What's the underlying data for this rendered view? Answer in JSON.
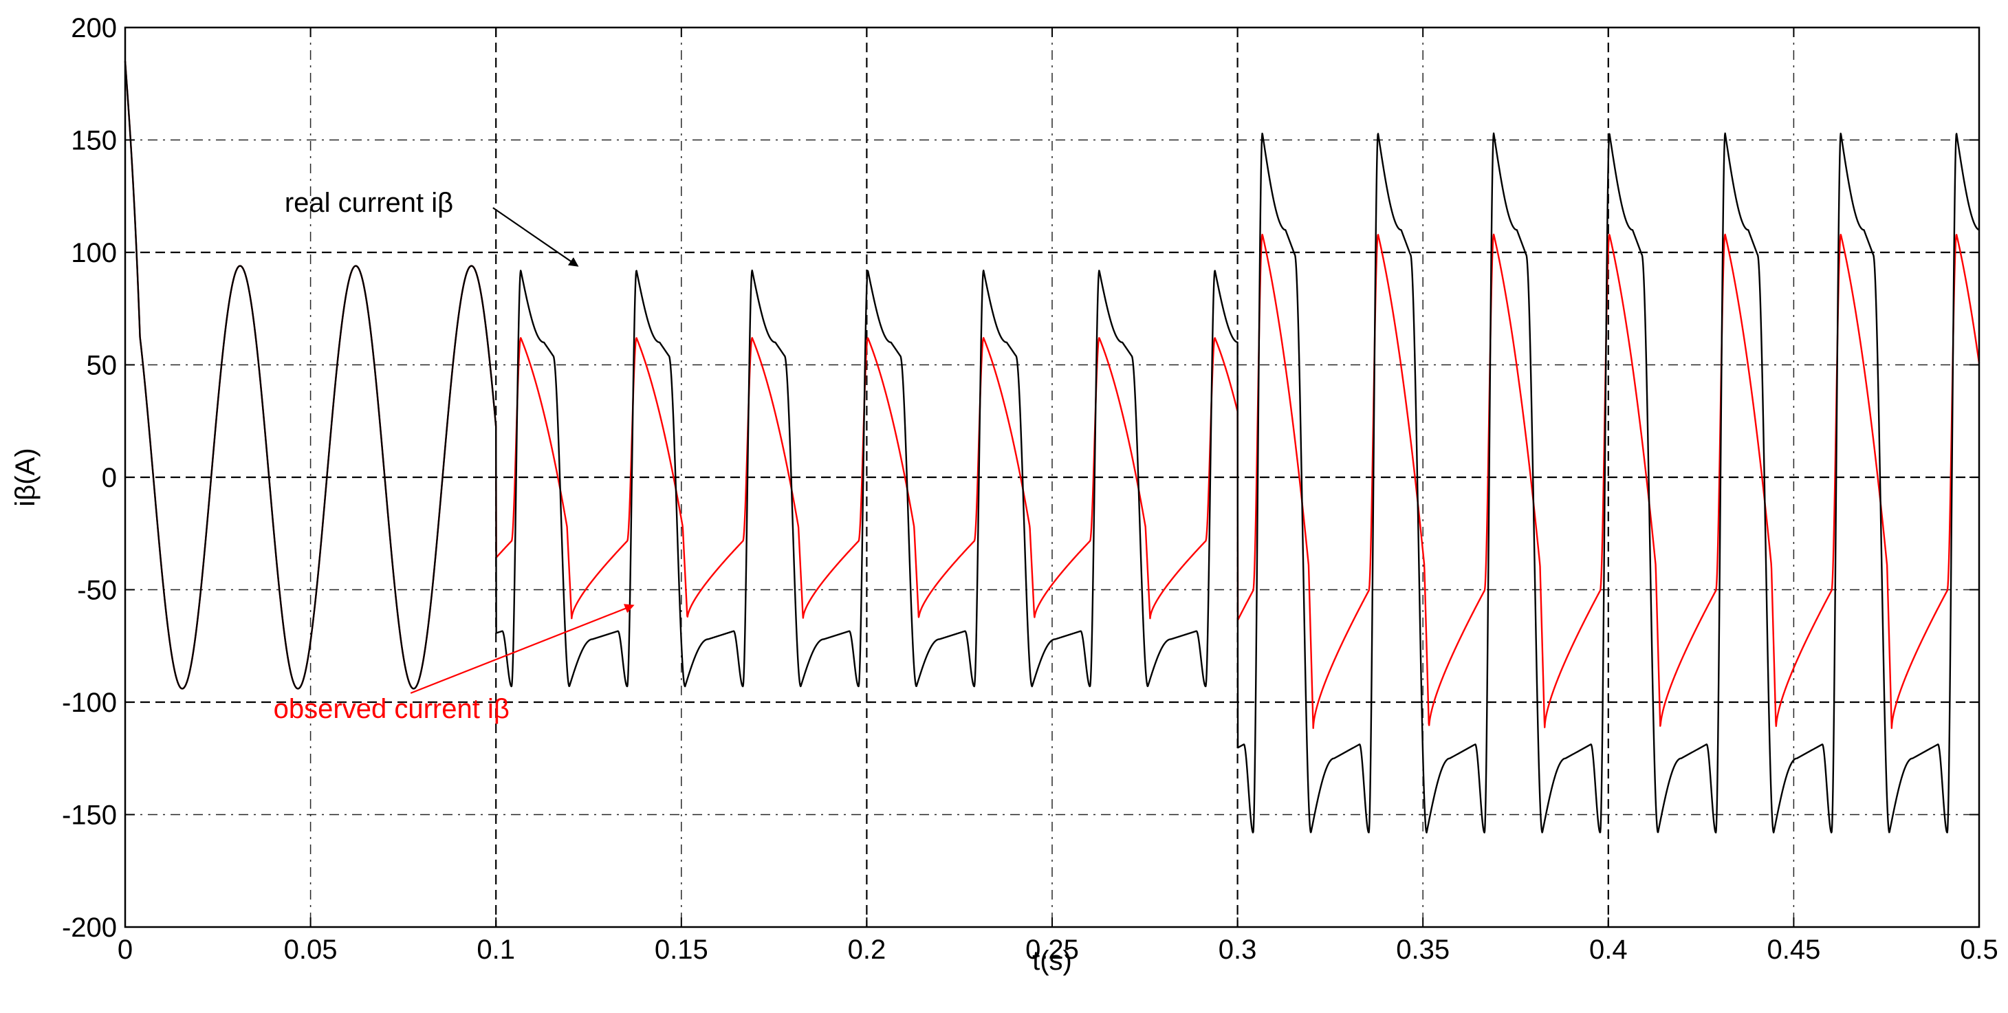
{
  "chart_data": {
    "type": "line",
    "title": "",
    "xlabel": "t(s)",
    "ylabel": "iβ(A)",
    "xlim": [
      0,
      0.5
    ],
    "ylim": [
      -200,
      200
    ],
    "grid": true,
    "x_ticks": [
      0,
      0.05,
      0.1,
      0.15,
      0.2,
      0.25,
      0.3,
      0.35,
      0.4,
      0.45,
      0.5
    ],
    "x_tick_labels": [
      "0",
      "0.05",
      "0.1",
      "0.15",
      "0.2",
      "0.25",
      "0.3",
      "0.35",
      "0.4",
      "0.45",
      "0.5"
    ],
    "y_ticks": [
      -200,
      -150,
      -100,
      -50,
      0,
      50,
      100,
      150,
      200
    ],
    "y_tick_labels": [
      "-200",
      "-150",
      "-100",
      "-50",
      "0",
      "50",
      "100",
      "150",
      "200"
    ],
    "period_s": 0.0312,
    "series": [
      {
        "name": "real current iβ",
        "color": "#000000",
        "segments": [
          {
            "t_start": 0.0,
            "t_end": 0.1,
            "shape": "sine",
            "amplitude": 94,
            "initial_peak": 185
          },
          {
            "t_start": 0.1,
            "t_end": 0.3,
            "shape": "distorted",
            "peak": 92,
            "trough": -93,
            "shoulder_high": 60,
            "shoulder_low": -72
          },
          {
            "t_start": 0.3,
            "t_end": 0.5,
            "shape": "distorted",
            "peak": 153,
            "trough": -158,
            "shoulder_high": 110,
            "shoulder_low": -125
          }
        ]
      },
      {
        "name": "observed current iβ",
        "color": "#ff0000",
        "segments": [
          {
            "t_start": 0.0,
            "t_end": 0.1,
            "shape": "sine",
            "amplitude": 94
          },
          {
            "t_start": 0.1,
            "t_end": 0.3,
            "shape": "observed",
            "peak": 62,
            "trough": -63
          },
          {
            "t_start": 0.3,
            "t_end": 0.5,
            "shape": "observed",
            "peak": 108,
            "trough": -112
          }
        ]
      }
    ],
    "annotations": [
      {
        "text": "real current iβ",
        "color": "#000000",
        "label_at": [
          0.043,
          118
        ],
        "arrow_to": [
          0.122,
          94
        ]
      },
      {
        "text": "observed current iβ",
        "color": "#ff0000",
        "label_at": [
          0.04,
          -107
        ],
        "arrow_to": [
          0.137,
          -57
        ]
      }
    ]
  }
}
